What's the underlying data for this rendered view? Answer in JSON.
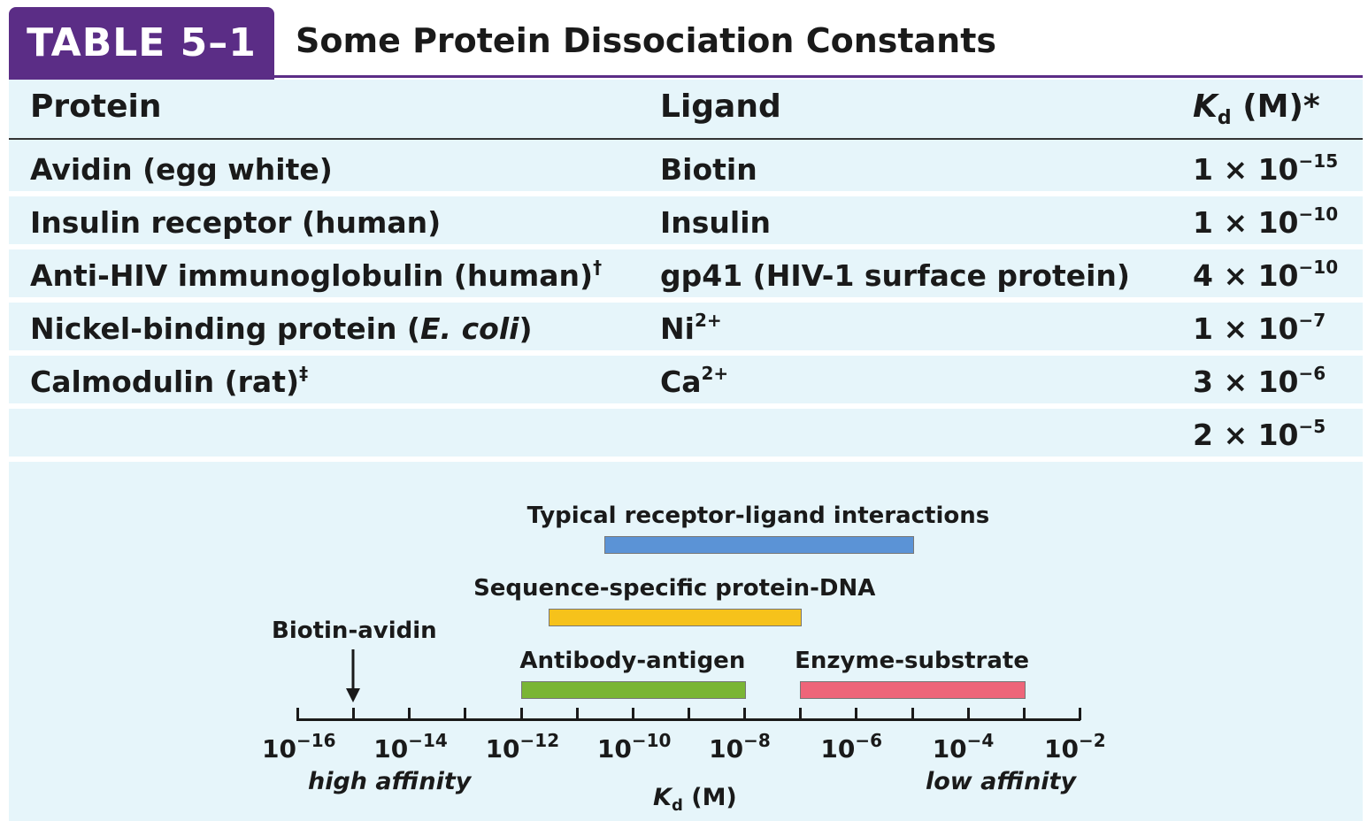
{
  "table": {
    "tag": "TABLE 5–1",
    "title": "Some Protein Dissociation Constants",
    "columns": {
      "protein": "Protein",
      "ligand": "Ligand",
      "kd_symbol": "K",
      "kd_sub": "d",
      "kd_unit": " (M)*"
    },
    "rows": [
      {
        "protein": "Avidin (egg white)",
        "ligand": "Biotin",
        "mant": "1 × 10",
        "exp": "−15"
      },
      {
        "protein": "Insulin receptor (human)",
        "ligand": "Insulin",
        "mant": "1 × 10",
        "exp": "−10"
      },
      {
        "protein": "Anti-HIV immunoglobulin (human)",
        "protein_mark": "†",
        "ligand": "gp41 (HIV-1 surface protein)",
        "mant": "4 × 10",
        "exp": "−10"
      },
      {
        "protein_pre": "Nickel-binding protein (",
        "protein_it": "E. coli",
        "protein_post": ")",
        "ligand_base": "Ni",
        "ligand_charge": "2+",
        "mant": "1 × 10",
        "exp": "−7"
      },
      {
        "protein": "Calmodulin (rat)",
        "protein_mark": "‡",
        "ligand_base": "Ca",
        "ligand_charge": "2+",
        "mant": "3 × 10",
        "exp": "−6"
      },
      {
        "mant": "2 × 10",
        "exp": "−5"
      }
    ]
  },
  "scale": {
    "ticks": [
      {
        "base": "10",
        "exp": "−16"
      },
      {
        "base": "10",
        "exp": "−14"
      },
      {
        "base": "10",
        "exp": "−12"
      },
      {
        "base": "10",
        "exp": "−10"
      },
      {
        "base": "10",
        "exp": "−8"
      },
      {
        "base": "10",
        "exp": "−6"
      },
      {
        "base": "10",
        "exp": "−4"
      },
      {
        "base": "10",
        "exp": "−2"
      }
    ],
    "high_affinity": "high affinity",
    "low_affinity": "low affinity",
    "axis_symbol": "K",
    "axis_sub": "d",
    "axis_unit": " (M)",
    "biotin_avidin": "Biotin-avidin",
    "ranges": [
      {
        "label": "Typical receptor-ligand interactions",
        "from_log10": -10.5,
        "to_log10": -5,
        "color": "#5b93d6"
      },
      {
        "label": "Sequence-specific protein-DNA",
        "from_log10": -11.5,
        "to_log10": -7,
        "color": "#f6c21b"
      },
      {
        "label": "Antibody-antigen",
        "from_log10": -12,
        "to_log10": -8,
        "color": "#7ab534"
      },
      {
        "label": "Enzyme-substrate",
        "from_log10": -7,
        "to_log10": -3,
        "color": "#ee6579"
      }
    ],
    "biotin_avidin_log10": -15
  }
}
